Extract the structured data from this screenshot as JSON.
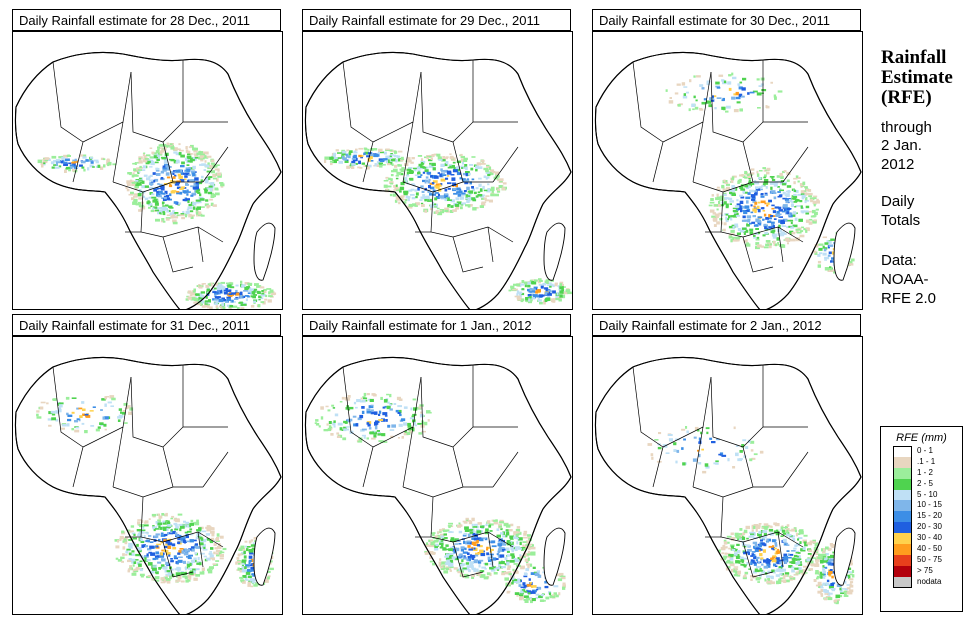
{
  "panels": [
    {
      "title": "Daily Rainfall estimate for  28 Dec., 2011"
    },
    {
      "title": "Daily Rainfall estimate for  29 Dec., 2011"
    },
    {
      "title": "Daily Rainfall estimate for  30 Dec., 2011"
    },
    {
      "title": "Daily Rainfall estimate for  31 Dec., 2011"
    },
    {
      "title": "Daily Rainfall estimate for  1 Jan., 2012"
    },
    {
      "title": "Daily Rainfall estimate for  2 Jan., 2012"
    }
  ],
  "sidebar": {
    "title_line1": "Rainfall",
    "title_line2": "Estimate",
    "title_line3": "(RFE)",
    "through": "through",
    "date_line1": "2 Jan.",
    "date_line2": "2012",
    "daily_line1": "Daily",
    "daily_line2": "Totals",
    "data_line1": "Data:",
    "data_line2": "NOAA-",
    "data_line3": "RFE 2.0"
  },
  "legend": {
    "title": "RFE (mm)",
    "items": [
      {
        "label": "0 - 1",
        "color": "#ffffff"
      },
      {
        "label": ".1 - 1",
        "color": "#e8d6c0"
      },
      {
        "label": "1 - 2",
        "color": "#9bee9b"
      },
      {
        "label": "2 - 5",
        "color": "#4fd34f"
      },
      {
        "label": "5 - 10",
        "color": "#bfe0f5"
      },
      {
        "label": "10 - 15",
        "color": "#7fb6ea"
      },
      {
        "label": "15 - 20",
        "color": "#3c8ee6"
      },
      {
        "label": "20 - 30",
        "color": "#1f5fe0"
      },
      {
        "label": "30 - 40",
        "color": "#ffd24d"
      },
      {
        "label": "40 - 50",
        "color": "#ff9d1e"
      },
      {
        "label": "50 - 75",
        "color": "#e8401c"
      },
      {
        "label": "> 75",
        "color": "#b3000c"
      },
      {
        "label": "nodata",
        "color": "#c8c8c8"
      }
    ]
  }
}
